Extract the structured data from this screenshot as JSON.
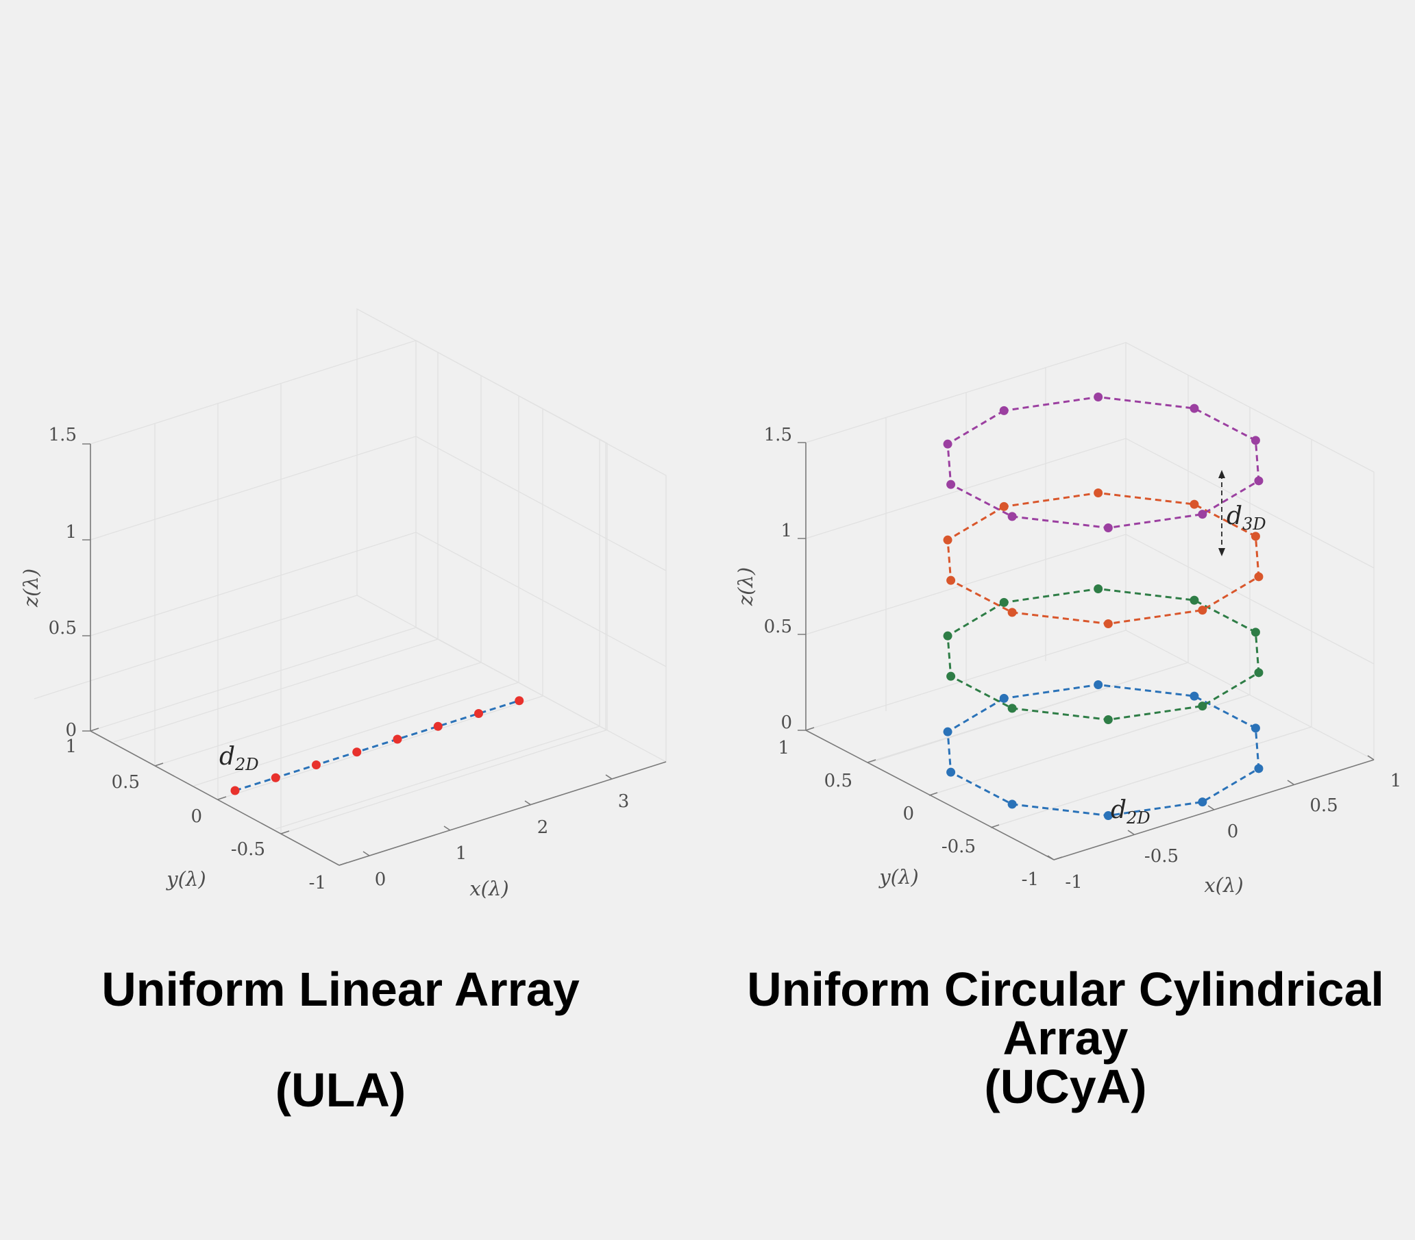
{
  "chart_data": [
    {
      "type": "scatter3d",
      "caption_lines": [
        "Uniform Linear Array",
        "",
        "(ULA)"
      ],
      "xlabel": "x(λ)",
      "ylabel": "y(λ)",
      "zlabel": "z(λ)",
      "xlim": [
        -0.2,
        3.7
      ],
      "ylim": [
        -1,
        1
      ],
      "zlim": [
        0,
        1.5
      ],
      "xticks": [
        "0",
        "1",
        "2",
        "3"
      ],
      "yticks": [
        "1",
        "0.5",
        "0",
        "-0.5",
        "-1"
      ],
      "zticks": [
        "0",
        "0.5",
        "1",
        "1.5"
      ],
      "grid": true,
      "annotations": [
        {
          "text": "d",
          "sub": "2D"
        }
      ],
      "series": [
        {
          "line_color": "#2a72b8",
          "marker_color": "#e8312c",
          "x": [
            0,
            0.5,
            1,
            1.5,
            2,
            2.5,
            3,
            3.5
          ],
          "y": [
            0,
            0,
            0,
            0,
            0,
            0,
            0,
            0
          ],
          "z": [
            0,
            0,
            0,
            0,
            0,
            0,
            0,
            0
          ]
        }
      ]
    },
    {
      "type": "scatter3d",
      "caption_lines": [
        "Uniform Circular Cylindrical",
        "Array",
        "(UCyA)"
      ],
      "xlabel": "x(λ)",
      "ylabel": "y(λ)",
      "zlabel": "z(λ)",
      "xlim": [
        -1,
        1
      ],
      "ylim": [
        -1,
        1
      ],
      "zlim": [
        0,
        1.5
      ],
      "xticks": [
        "-1",
        "-0.5",
        "0",
        "0.5",
        "1"
      ],
      "yticks": [
        "1",
        "0.5",
        "0",
        "-0.5",
        "-1"
      ],
      "zticks": [
        "0",
        "0.5",
        "1",
        "1.5"
      ],
      "grid": true,
      "annotations": [
        {
          "text": "d",
          "sub": "2D"
        },
        {
          "text": "d",
          "sub": "3D"
        }
      ],
      "ring_radius": 0.8,
      "ring_elements": 10,
      "series": [
        {
          "line_color": "#2a72b8",
          "marker_color": "#2a72b8",
          "z": 0.0
        },
        {
          "line_color": "#2e7d46",
          "marker_color": "#2e7d46",
          "z": 0.5
        },
        {
          "line_color": "#d9562b",
          "marker_color": "#d9562b",
          "z": 1.0
        },
        {
          "line_color": "#9b3fa0",
          "marker_color": "#9b3fa0",
          "z": 1.5
        }
      ]
    }
  ]
}
